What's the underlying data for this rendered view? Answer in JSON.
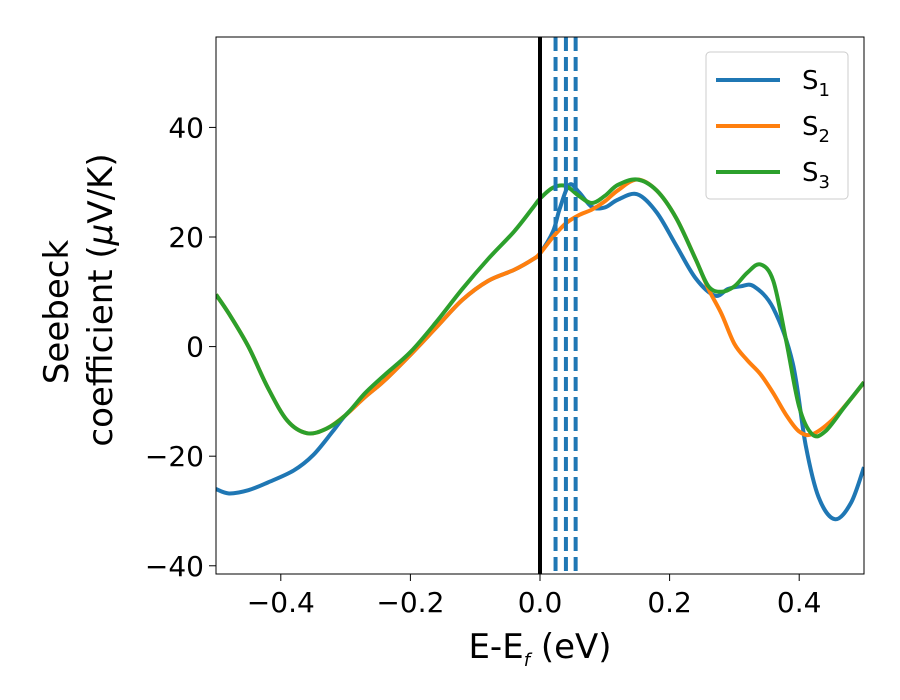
{
  "chart_data": {
    "type": "line",
    "xlabel": {
      "main": "E-E",
      "sub": "f",
      "tail": " (eV)"
    },
    "ylabel": {
      "line1": "Seebeck",
      "line2_prefix": "coefficient  (",
      "mu": "μ",
      "line2_suffix": "V/K)"
    },
    "xlim": [
      -0.5,
      0.5
    ],
    "ylim": [
      -41.5,
      56.5
    ],
    "xticks": [
      -0.4,
      -0.2,
      0.0,
      0.2,
      0.4
    ],
    "xtick_labels": [
      "−0.4",
      "−0.2",
      "0.0",
      "0.2",
      "0.4"
    ],
    "yticks": [
      -40,
      -20,
      0,
      20,
      40
    ],
    "ytick_labels": [
      "−40",
      "−20",
      "0",
      "20",
      "40"
    ],
    "grid": false,
    "legend_position": "top-right",
    "vertical_lines": [
      {
        "x": 0.0,
        "style": "solid",
        "color": "#000000"
      },
      {
        "x": 0.024,
        "style": "dashed",
        "color": "#1f77b4"
      },
      {
        "x": 0.04,
        "style": "dashed",
        "color": "#1f77b4"
      },
      {
        "x": 0.055,
        "style": "dashed",
        "color": "#1f77b4"
      }
    ],
    "series": [
      {
        "name": "S",
        "sub": "1",
        "color": "#1f77b4",
        "points": [
          [
            -0.5,
            -26
          ],
          [
            -0.48,
            -26.8
          ],
          [
            -0.45,
            -26.2
          ],
          [
            -0.42,
            -24.8
          ],
          [
            -0.38,
            -22.6
          ],
          [
            -0.35,
            -19.8
          ],
          [
            -0.32,
            -15.5
          ],
          [
            -0.3,
            -12.5
          ],
          [
            -0.27,
            -9.2
          ],
          [
            -0.24,
            -6.2
          ],
          [
            -0.2,
            -1.5
          ],
          [
            -0.16,
            3.5
          ],
          [
            -0.12,
            8.5
          ],
          [
            -0.08,
            12
          ],
          [
            -0.04,
            14
          ],
          [
            -0.01,
            16
          ],
          [
            0.0,
            17
          ],
          [
            0.02,
            21
          ],
          [
            0.03,
            25
          ],
          [
            0.045,
            29.5
          ],
          [
            0.06,
            28.2
          ],
          [
            0.08,
            25.5
          ],
          [
            0.1,
            25.4
          ],
          [
            0.12,
            26.8
          ],
          [
            0.15,
            27.8
          ],
          [
            0.18,
            24.5
          ],
          [
            0.21,
            18.5
          ],
          [
            0.24,
            12.5
          ],
          [
            0.27,
            9.3
          ],
          [
            0.29,
            10.5
          ],
          [
            0.31,
            11
          ],
          [
            0.33,
            11
          ],
          [
            0.36,
            7
          ],
          [
            0.39,
            -3
          ],
          [
            0.41,
            -18
          ],
          [
            0.43,
            -27.5
          ],
          [
            0.455,
            -31.5
          ],
          [
            0.48,
            -28.5
          ],
          [
            0.5,
            -22
          ]
        ]
      },
      {
        "name": "S",
        "sub": "2",
        "color": "#ff7f0e",
        "points": [
          [
            -0.5,
            9.5
          ],
          [
            -0.48,
            6
          ],
          [
            -0.45,
            0
          ],
          [
            -0.42,
            -7.5
          ],
          [
            -0.39,
            -13.5
          ],
          [
            -0.36,
            -15.8
          ],
          [
            -0.33,
            -15
          ],
          [
            -0.3,
            -12.5
          ],
          [
            -0.27,
            -9.2
          ],
          [
            -0.24,
            -6.2
          ],
          [
            -0.2,
            -1.5
          ],
          [
            -0.16,
            3.5
          ],
          [
            -0.12,
            8.5
          ],
          [
            -0.08,
            12
          ],
          [
            -0.04,
            14
          ],
          [
            -0.01,
            16
          ],
          [
            0.0,
            17
          ],
          [
            0.02,
            20
          ],
          [
            0.04,
            22.5
          ],
          [
            0.06,
            24
          ],
          [
            0.08,
            25
          ],
          [
            0.1,
            26.5
          ],
          [
            0.12,
            28.5
          ],
          [
            0.15,
            30.5
          ],
          [
            0.18,
            28.5
          ],
          [
            0.21,
            23.5
          ],
          [
            0.24,
            16
          ],
          [
            0.26,
            10.5
          ],
          [
            0.28,
            6
          ],
          [
            0.3,
            0.5
          ],
          [
            0.32,
            -2.5
          ],
          [
            0.34,
            -5
          ],
          [
            0.36,
            -8.5
          ],
          [
            0.38,
            -12.5
          ],
          [
            0.4,
            -15.5
          ],
          [
            0.42,
            -16
          ],
          [
            0.45,
            -13.5
          ],
          [
            0.48,
            -9.5
          ],
          [
            0.5,
            -6.5
          ]
        ]
      },
      {
        "name": "S",
        "sub": "3",
        "color": "#2ca02c",
        "points": [
          [
            -0.5,
            9.5
          ],
          [
            -0.48,
            6
          ],
          [
            -0.45,
            0
          ],
          [
            -0.42,
            -7.5
          ],
          [
            -0.39,
            -13.5
          ],
          [
            -0.36,
            -15.8
          ],
          [
            -0.33,
            -15
          ],
          [
            -0.3,
            -12.5
          ],
          [
            -0.27,
            -8.5
          ],
          [
            -0.24,
            -5.2
          ],
          [
            -0.2,
            -1
          ],
          [
            -0.16,
            4.5
          ],
          [
            -0.12,
            10.5
          ],
          [
            -0.08,
            16
          ],
          [
            -0.04,
            21
          ],
          [
            -0.01,
            25.5
          ],
          [
            0.0,
            27
          ],
          [
            0.02,
            29
          ],
          [
            0.04,
            29.3
          ],
          [
            0.06,
            27.5
          ],
          [
            0.08,
            26.2
          ],
          [
            0.1,
            27.5
          ],
          [
            0.12,
            29.5
          ],
          [
            0.15,
            30.5
          ],
          [
            0.18,
            28.5
          ],
          [
            0.21,
            23.5
          ],
          [
            0.24,
            16
          ],
          [
            0.26,
            11
          ],
          [
            0.28,
            10
          ],
          [
            0.3,
            11
          ],
          [
            0.32,
            13.5
          ],
          [
            0.34,
            15
          ],
          [
            0.36,
            12
          ],
          [
            0.38,
            1
          ],
          [
            0.4,
            -11
          ],
          [
            0.42,
            -16
          ],
          [
            0.44,
            -15.5
          ],
          [
            0.47,
            -11
          ],
          [
            0.5,
            -6.5
          ]
        ]
      }
    ]
  }
}
